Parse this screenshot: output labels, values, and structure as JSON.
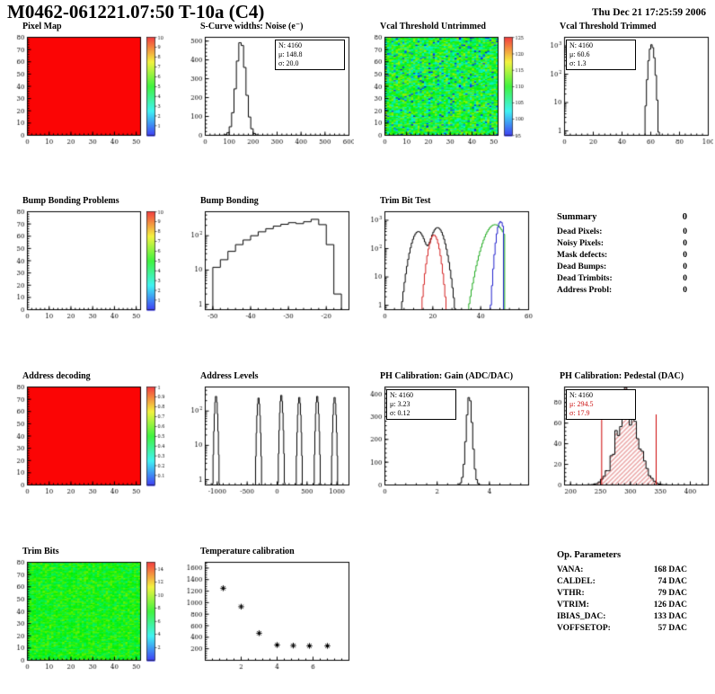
{
  "header": {
    "title": "M0462-061221.07:50 T-10a (C4)",
    "date": "Thu Dec 21 17:25:59 2006"
  },
  "summary": {
    "title": "Summary",
    "value": "0",
    "rows": [
      {
        "label": "Dead Pixels:",
        "value": "0"
      },
      {
        "label": "Noisy Pixels:",
        "value": "0"
      },
      {
        "label": "Mask defects:",
        "value": "0"
      },
      {
        "label": "Dead Bumps:",
        "value": "0"
      },
      {
        "label": "Dead Trimbits:",
        "value": "0"
      },
      {
        "label": "Address Probl:",
        "value": "0"
      }
    ]
  },
  "op_parameters": {
    "title": "Op. Parameters",
    "rows": [
      {
        "label": "VANA:",
        "value": "168 DAC"
      },
      {
        "label": "CALDEL:",
        "value": "74 DAC"
      },
      {
        "label": "VTHR:",
        "value": "79 DAC"
      },
      {
        "label": "VTRIM:",
        "value": "126 DAC"
      },
      {
        "label": "IBIAS_DAC:",
        "value": "133 DAC"
      },
      {
        "label": "VOFFSETOP:",
        "value": "57 DAC"
      }
    ]
  },
  "chart_data": [
    {
      "id": "pixel-map",
      "title": "Pixel Map",
      "type": "heatmap",
      "mode": "uniform",
      "color": "#fb0505",
      "xlim": [
        0,
        52
      ],
      "ylim": [
        0,
        80
      ],
      "xticks": [
        0,
        10,
        20,
        30,
        40,
        50
      ],
      "yticks": [
        0,
        10,
        20,
        30,
        40,
        50,
        60,
        70,
        80
      ],
      "colorbar": {
        "min": 0,
        "max": 10,
        "ticks": [
          1,
          2,
          3,
          4,
          5,
          6,
          7,
          8,
          9,
          10
        ]
      }
    },
    {
      "id": "scurve-noise",
      "title": "S-Curve widths: Noise (e⁻)",
      "type": "hist",
      "xlim": [
        0,
        600
      ],
      "ylim": [
        0,
        520
      ],
      "xticks": [
        0,
        100,
        200,
        300,
        400,
        500,
        600
      ],
      "yticks": [
        0,
        100,
        200,
        300,
        400,
        500
      ],
      "bins": 60,
      "components": [
        {
          "m": 148.8,
          "s": 20,
          "a": 500
        }
      ],
      "stats": [
        "N: 4160",
        "μ: 148.8",
        "σ: 20.0"
      ]
    },
    {
      "id": "vcal-threshold-untrimmed",
      "title": "Vcal Threshold Untrimmed",
      "type": "heatmap",
      "mode": "noise",
      "heat": {
        "mean": 109,
        "spread": 6,
        "low_frac": 0.05,
        "low": 97
      },
      "xlim": [
        0,
        52
      ],
      "ylim": [
        0,
        80
      ],
      "xticks": [
        0,
        10,
        20,
        30,
        40,
        50
      ],
      "yticks": [
        0,
        10,
        20,
        30,
        40,
        50,
        60,
        70,
        80
      ],
      "colorbar": {
        "min": 95,
        "max": 125,
        "ticks": [
          95,
          100,
          105,
          110,
          115,
          120,
          125
        ]
      }
    },
    {
      "id": "vcal-threshold-trimmed",
      "title": "Vcal Threshold Trimmed",
      "type": "hist",
      "ylog": true,
      "xlim": [
        0,
        100
      ],
      "ylim": [
        0.7,
        2000
      ],
      "xticks": [
        0,
        20,
        40,
        60,
        80,
        100
      ],
      "bins": 100,
      "components": [
        {
          "m": 60.6,
          "s": 1.3,
          "a": 1100
        }
      ],
      "stats": [
        "N: 4160",
        "μ: 60.6",
        "σ: 1.3"
      ]
    },
    {
      "id": "bump-bonding-problems",
      "title": "Bump Bonding Problems",
      "type": "heatmap",
      "mode": "empty",
      "xlim": [
        0,
        52
      ],
      "ylim": [
        0,
        80
      ],
      "xticks": [
        0,
        10,
        20,
        30,
        40,
        50
      ],
      "yticks": [
        0,
        10,
        20,
        30,
        40,
        50,
        60,
        70,
        80
      ],
      "colorbar": {
        "min": 0,
        "max": 10,
        "ticks": [
          1,
          2,
          3,
          4,
          5,
          6,
          7,
          8,
          9,
          10
        ]
      }
    },
    {
      "id": "bump-bonding",
      "title": "Bump Bonding",
      "type": "hist",
      "ylog": true,
      "xlim": [
        -52,
        -14
      ],
      "ylim": [
        0.7,
        500
      ],
      "xticks": [
        -50,
        -40,
        -30,
        -20
      ],
      "bins": 19,
      "counts_start": -52,
      "counts_width": 2,
      "counts": [
        0,
        12,
        20,
        35,
        55,
        75,
        100,
        130,
        160,
        190,
        215,
        240,
        225,
        255,
        300,
        210,
        55,
        2,
        0
      ]
    },
    {
      "id": "trim-bit-test",
      "title": "Trim Bit Test",
      "type": "multi",
      "ylog": true,
      "xlim": [
        0,
        60
      ],
      "ylim": [
        0.7,
        2000
      ],
      "xticks": [
        0,
        20,
        40,
        60
      ],
      "bins": 120,
      "series": [
        {
          "name": "trim-bit-0",
          "color": "#000000",
          "components": [
            {
              "m": 14,
              "s": 2,
              "a": 400
            },
            {
              "m": 22,
              "s": 2,
              "a": 550
            }
          ]
        },
        {
          "name": "trim-bit-1",
          "color": "#d42020",
          "components": [
            {
              "m": 20.5,
              "s": 1.5,
              "a": 300
            }
          ]
        },
        {
          "name": "trim-bit-2",
          "color": "#1faa1f",
          "components": [
            {
              "m": 46,
              "s": 3,
              "a": 700
            }
          ],
          "cut": 50
        },
        {
          "name": "trim-bit-3",
          "color": "#2020cc",
          "components": [
            {
              "m": 48.3,
              "s": 1.1,
              "a": 900
            }
          ],
          "cut": 49.5
        }
      ]
    },
    {
      "id": "address-decoding",
      "title": "Address decoding",
      "type": "heatmap",
      "mode": "uniform",
      "color": "#fb0505",
      "xlim": [
        0,
        52
      ],
      "ylim": [
        0,
        80
      ],
      "xticks": [
        0,
        10,
        20,
        30,
        40,
        50
      ],
      "yticks": [
        0,
        10,
        20,
        30,
        40,
        50,
        60,
        70,
        80
      ],
      "colorbar": {
        "min": 0,
        "max": 1,
        "ticks": [
          0.1,
          0.2,
          0.3,
          0.4,
          0.5,
          0.6,
          0.7,
          0.8,
          0.9,
          1
        ]
      }
    },
    {
      "id": "address-levels",
      "title": "Address Levels",
      "type": "hist",
      "ylog": true,
      "xlim": [
        -1200,
        1200
      ],
      "ylim": [
        0.7,
        500
      ],
      "xticks": [
        -1000,
        -500,
        0,
        500,
        1000
      ],
      "bins": 240,
      "components": [
        {
          "m": -1020,
          "s": 16,
          "a": 280
        },
        {
          "m": -310,
          "s": 16,
          "a": 250
        },
        {
          "m": 70,
          "s": 16,
          "a": 300
        },
        {
          "m": 370,
          "s": 16,
          "a": 260
        },
        {
          "m": 670,
          "s": 16,
          "a": 280
        },
        {
          "m": 960,
          "s": 16,
          "a": 260
        }
      ]
    },
    {
      "id": "ph-calibration-gain",
      "title": "PH Calibration: Gain (ADC/DAC)",
      "type": "hist",
      "xlim": [
        0,
        5.5
      ],
      "ylim": [
        0,
        430
      ],
      "xticks": [
        0,
        2,
        4
      ],
      "yticks": [
        0,
        100,
        200,
        300,
        400
      ],
      "bins": 90,
      "components": [
        {
          "m": 3.23,
          "s": 0.12,
          "a": 390
        }
      ],
      "stats": [
        "N: 4160",
        "μ: 3.23",
        "σ: 0.12"
      ]
    },
    {
      "id": "ph-calibration-pedestal",
      "title": "PH Calibration: Pedestal (DAC)",
      "type": "hist",
      "fill": "hatch",
      "noise": true,
      "xlim": [
        190,
        430
      ],
      "ylim": [
        0,
        95
      ],
      "xticks": [
        200,
        250,
        300,
        350,
        400
      ],
      "yticks": [
        0,
        20,
        40,
        60,
        80
      ],
      "bins": 60,
      "components": [
        {
          "m": 294.5,
          "s": 17.9,
          "a": 78
        }
      ],
      "vlines": [
        {
          "x": 252,
          "frac": 0.72,
          "color": "#cc0000"
        },
        {
          "x": 343,
          "frac": 0.72,
          "color": "#cc0000"
        }
      ],
      "stats": [
        "N: 4160",
        "μ: 294.5",
        "σ: 17.9"
      ]
    },
    {
      "id": "trim-bits",
      "title": "Trim Bits",
      "type": "heatmap",
      "mode": "noise",
      "heat": {
        "mean": 7.5,
        "spread": 1.7,
        "low_frac": 0,
        "low": 0
      },
      "xlim": [
        0,
        52
      ],
      "ylim": [
        0,
        80
      ],
      "xticks": [
        0,
        10,
        20,
        30,
        40,
        50
      ],
      "yticks": [
        0,
        10,
        20,
        30,
        40,
        50,
        60,
        70,
        80
      ],
      "colorbar": {
        "min": 0,
        "max": 15,
        "ticks": [
          2,
          4,
          6,
          8,
          10,
          12,
          14
        ]
      }
    },
    {
      "id": "temperature-calibration",
      "title": "Temperature calibration",
      "type": "scatter",
      "marker": "asterisk",
      "xlim": [
        0,
        8
      ],
      "ylim": [
        0,
        1700
      ],
      "xticks": [
        2,
        4,
        6
      ],
      "yticks": [
        200,
        400,
        600,
        800,
        1000,
        1200,
        1400,
        1600
      ],
      "points": [
        [
          1,
          1250
        ],
        [
          2,
          930
        ],
        [
          3,
          470
        ],
        [
          4,
          265
        ],
        [
          4.9,
          255
        ],
        [
          5.8,
          250
        ],
        [
          6.8,
          250
        ]
      ]
    }
  ]
}
